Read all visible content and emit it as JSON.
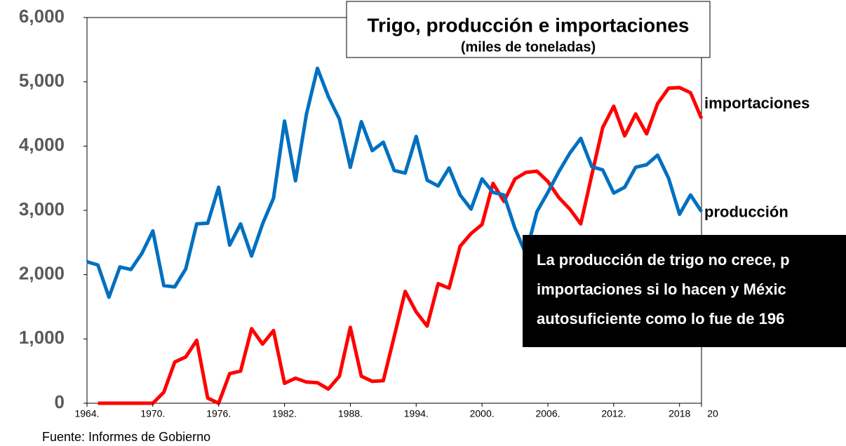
{
  "chart_data": {
    "type": "line",
    "title": "Trigo, producción e importaciones",
    "subtitle": "(miles de toneladas)",
    "x": [
      1964,
      1965,
      1966,
      1967,
      1968,
      1969,
      1970,
      1971,
      1972,
      1973,
      1974,
      1975,
      1976,
      1977,
      1978,
      1979,
      1980,
      1981,
      1982,
      1983,
      1984,
      1985,
      1986,
      1987,
      1988,
      1989,
      1990,
      1991,
      1992,
      1993,
      1994,
      1995,
      1996,
      1997,
      1998,
      1999,
      2000,
      2001,
      2002,
      2003,
      2004,
      2005,
      2006,
      2007,
      2008,
      2009,
      2010,
      2011,
      2012,
      2013,
      2014,
      2015,
      2016,
      2017,
      2018,
      2019,
      2020
    ],
    "series": [
      {
        "name": "importaciones",
        "color": "#ff0000",
        "values": [
          null,
          0,
          0,
          0,
          0,
          0,
          0,
          170,
          640,
          720,
          980,
          80,
          0,
          460,
          500,
          1160,
          920,
          1130,
          310,
          390,
          330,
          320,
          220,
          420,
          1180,
          420,
          340,
          350,
          1040,
          1740,
          1420,
          1200,
          1860,
          1790,
          2440,
          2640,
          2780,
          3420,
          3140,
          3490,
          3590,
          3610,
          3450,
          3200,
          3020,
          2790,
          3550,
          4290,
          4620,
          4160,
          4500,
          4190,
          4660,
          4900,
          4910,
          4830,
          4430
        ]
      },
      {
        "name": "producción",
        "color": "#0070c0",
        "values": [
          2200,
          2150,
          1650,
          2120,
          2080,
          2330,
          2680,
          1830,
          1810,
          2090,
          2790,
          2800,
          3360,
          2460,
          2790,
          2290,
          2790,
          3190,
          4390,
          3460,
          4500,
          5210,
          4770,
          4420,
          3670,
          4380,
          3930,
          4060,
          3620,
          3580,
          4150,
          3470,
          3380,
          3660,
          3240,
          3020,
          3490,
          3280,
          3240,
          2720,
          2320,
          2980,
          3280,
          3600,
          3890,
          4120,
          3680,
          3630,
          3270,
          3360,
          3670,
          3710,
          3860,
          3500,
          2940,
          3240,
          2980
        ]
      }
    ],
    "xlim": [
      1964,
      2020
    ],
    "xticks": [
      {
        "value": 1964,
        "label": "1964."
      },
      {
        "value": 1970,
        "label": "1970."
      },
      {
        "value": 1976,
        "label": "1976."
      },
      {
        "value": 1982,
        "label": "1982."
      },
      {
        "value": 1988,
        "label": "1988."
      },
      {
        "value": 1994,
        "label": "1994."
      },
      {
        "value": 2000,
        "label": "2000."
      },
      {
        "value": 2006,
        "label": "2006."
      },
      {
        "value": 2012,
        "label": "2012."
      },
      2018,
      {
        "value": 2020,
        "label": "20"
      }
    ],
    "ylim": [
      0,
      6000
    ],
    "yticks": [
      0,
      {
        "value": 1000,
        "label": "1,000"
      },
      {
        "value": 2000,
        "label": "2,000"
      },
      {
        "value": 3000,
        "label": "3,000"
      },
      {
        "value": 4000,
        "label": "4,000"
      },
      {
        "value": 5000,
        "label": "5,000"
      },
      {
        "value": 6000,
        "label": "6,000"
      }
    ],
    "grid": false,
    "annotation": [
      "La producción de trigo no crece, p",
      "importaciones si lo hacen y Méxic",
      "autosuficiente como lo fue de 196"
    ],
    "source": "Fuente: Informes de Gobierno"
  }
}
